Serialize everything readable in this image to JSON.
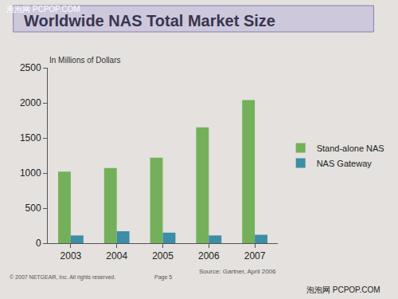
{
  "chart_data": {
    "type": "bar",
    "title": "Worldwide NAS Total Market Size",
    "y_label": "In Millions of Dollars",
    "categories": [
      "2003",
      "2004",
      "2005",
      "2006",
      "2007"
    ],
    "series": [
      {
        "name": "Stand-alone NAS",
        "color": "#74b05a",
        "values": [
          1020,
          1070,
          1220,
          1650,
          2040
        ]
      },
      {
        "name": "NAS Gateway",
        "color": "#3b8ea5",
        "values": [
          110,
          170,
          150,
          110,
          120
        ]
      }
    ],
    "ylim": [
      0,
      2500
    ],
    "yticks": [
      0,
      500,
      1000,
      1500,
      2000,
      2500
    ],
    "grid": false,
    "legend": "right",
    "annotations": [
      "Source: Gartner, April 2006",
      "© 2007 NETGEAR, Inc. All rights reserved.",
      "Page 5",
      "泡泡网 PCPOP.COM",
      "泡泡网 PCPOP.COM"
    ]
  }
}
